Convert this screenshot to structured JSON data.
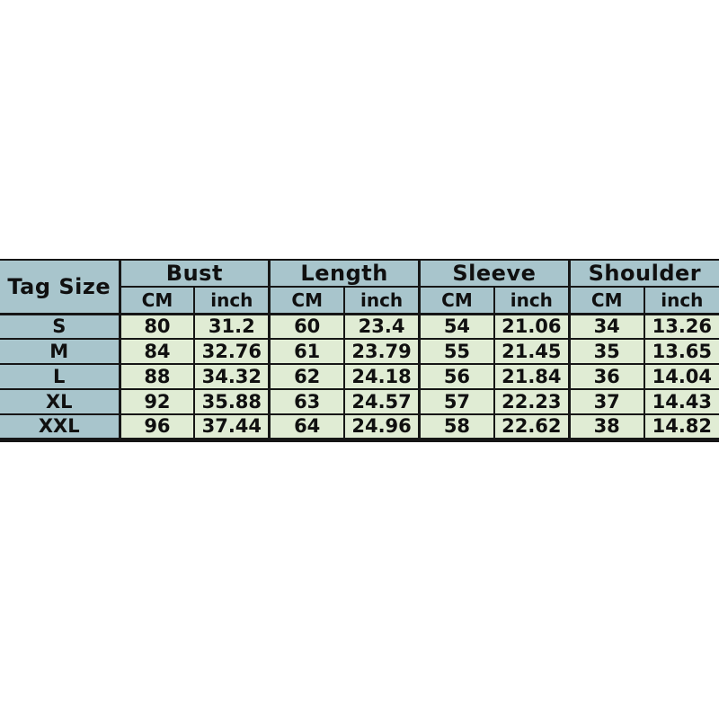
{
  "chart_data": {
    "type": "table",
    "corner_header": "Tag Size",
    "column_groups": [
      "Bust",
      "Length",
      "Sleeve",
      "Shoulder"
    ],
    "unit_columns": [
      "CM",
      "inch"
    ],
    "rows": [
      {
        "size": "S",
        "values": [
          "80",
          "31.2",
          "60",
          "23.4",
          "54",
          "21.06",
          "34",
          "13.26"
        ]
      },
      {
        "size": "M",
        "values": [
          "84",
          "32.76",
          "61",
          "23.79",
          "55",
          "21.45",
          "35",
          "13.65"
        ]
      },
      {
        "size": "L",
        "values": [
          "88",
          "34.32",
          "62",
          "24.18",
          "56",
          "21.84",
          "36",
          "14.04"
        ]
      },
      {
        "size": "XL",
        "values": [
          "92",
          "35.88",
          "63",
          "24.57",
          "57",
          "22.23",
          "37",
          "14.43"
        ]
      },
      {
        "size": "XXL",
        "values": [
          "96",
          "37.44",
          "64",
          "24.96",
          "58",
          "22.62",
          "38",
          "14.82"
        ]
      }
    ],
    "colors": {
      "header_bg": "#a8c5cc",
      "value_bg": "#e0ecd4",
      "border": "#161616",
      "text": "#101010",
      "page_bg": "#ffffff"
    }
  }
}
